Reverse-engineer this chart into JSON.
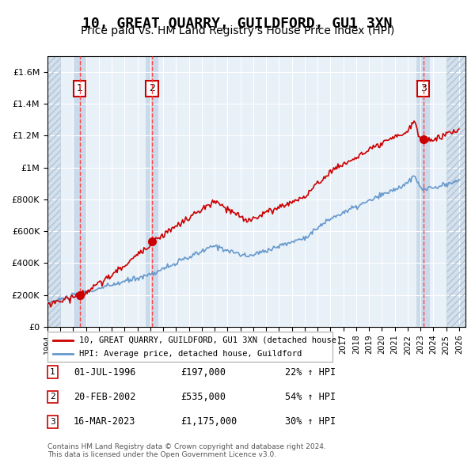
{
  "title": "10, GREAT QUARRY, GUILDFORD, GU1 3XN",
  "subtitle": "Price paid vs. HM Land Registry's House Price Index (HPI)",
  "title_fontsize": 13,
  "subtitle_fontsize": 10,
  "xlim": [
    1994.0,
    2026.5
  ],
  "ylim": [
    0,
    1700000
  ],
  "yticks": [
    0,
    200000,
    400000,
    600000,
    800000,
    1000000,
    1200000,
    1400000,
    1600000
  ],
  "ytick_labels": [
    "£0",
    "£200K",
    "£400K",
    "£600K",
    "£800K",
    "£1M",
    "£1.2M",
    "£1.4M",
    "£1.6M"
  ],
  "background_color": "#ffffff",
  "plot_bg_color": "#e8f0f8",
  "grid_color": "#ffffff",
  "hatch_color": "#c8d8e8",
  "purchase_points": [
    {
      "year": 1996.5,
      "price": 197000,
      "label": "1",
      "date": "01-JUL-1996",
      "pct": "22%"
    },
    {
      "year": 2002.13,
      "price": 535000,
      "label": "2",
      "date": "20-FEB-2002",
      "pct": "54%"
    },
    {
      "year": 2023.21,
      "price": 1175000,
      "label": "3",
      "date": "16-MAR-2023",
      "pct": "30%"
    }
  ],
  "red_line_color": "#cc0000",
  "blue_line_color": "#6699cc",
  "dot_color": "#cc0000",
  "dashed_line_color": "#ff4444",
  "legend_label_red": "10, GREAT QUARRY, GUILDFORD, GU1 3XN (detached house)",
  "legend_label_blue": "HPI: Average price, detached house, Guildford",
  "footnote": "Contains HM Land Registry data © Crown copyright and database right 2024.\nThis data is licensed under the Open Government Licence v3.0.",
  "table_rows": [
    {
      "num": "1",
      "date": "01-JUL-1996",
      "price": "£197,000",
      "pct": "22% ↑ HPI"
    },
    {
      "num": "2",
      "date": "20-FEB-2002",
      "price": "£535,000",
      "pct": "54% ↑ HPI"
    },
    {
      "num": "3",
      "date": "16-MAR-2023",
      "price": "£1,175,000",
      "pct": "30% ↑ HPI"
    }
  ]
}
